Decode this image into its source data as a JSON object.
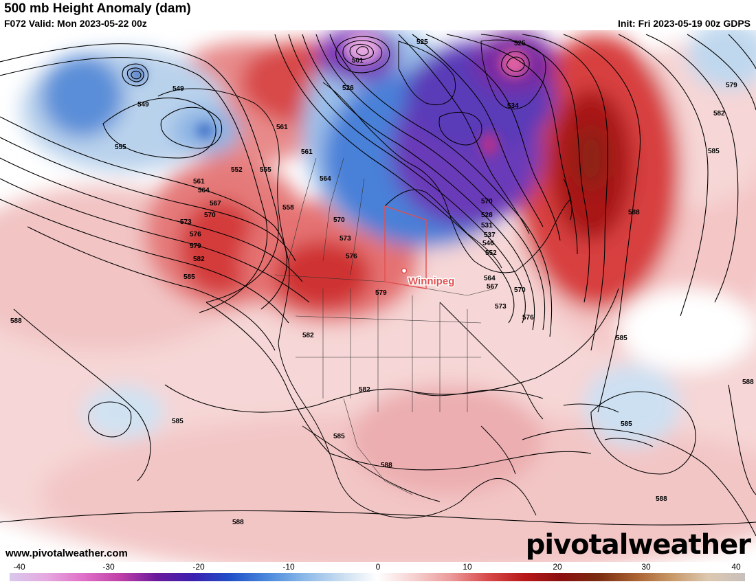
{
  "header": {
    "title": "500 mb Height Anomaly (dam)",
    "valid": "F072 Valid: Mon 2023-05-22 00z",
    "init": "Init: Fri 2023-05-19 00z GDPS"
  },
  "city": {
    "name": "Winnipeg",
    "color": "#e05050"
  },
  "contour_labels": [
    "501",
    "525",
    "525",
    "526",
    "528",
    "531",
    "534",
    "537",
    "546",
    "549",
    "549",
    "552",
    "552",
    "555",
    "555",
    "558",
    "561",
    "561",
    "561",
    "564",
    "564",
    "564",
    "567",
    "567",
    "570",
    "570",
    "570",
    "570",
    "573",
    "573",
    "573",
    "576",
    "576",
    "576",
    "579",
    "579",
    "579",
    "582",
    "582",
    "582",
    "582",
    "585",
    "585",
    "585",
    "585",
    "585",
    "585",
    "588",
    "588",
    "588",
    "588",
    "588",
    "588"
  ],
  "colorbar": {
    "ticks": [
      "-40",
      "-30",
      "-20",
      "-10",
      "0",
      "10",
      "20",
      "30",
      "40"
    ],
    "min": -40,
    "max": 40,
    "stops": [
      "#d8c8ec",
      "#e6a8e0",
      "#e070c8",
      "#c040a8",
      "#6a1a9c",
      "#3a20b0",
      "#2050c8",
      "#4a88dc",
      "#8ab8e8",
      "#c8dcf0",
      "#ffffff",
      "#f6d0d0",
      "#ec9a9a",
      "#d84a4a",
      "#b81818",
      "#8a1010",
      "#7a2c10",
      "#a86030",
      "#c89868",
      "#dcc8b0",
      "#c8c0bc"
    ]
  },
  "anomaly_colors": {
    "strong_negative": "#6a1a9c",
    "negative": "#2050c8",
    "weak_negative": "#c8dcf0",
    "neutral": "#ffffff",
    "weak_positive": "#f6d0d0",
    "positive": "#d84a4a",
    "strong_positive": "#8a1010"
  },
  "footer": {
    "website": "www.pivotalweather.com",
    "brand": "pivotalweather"
  }
}
